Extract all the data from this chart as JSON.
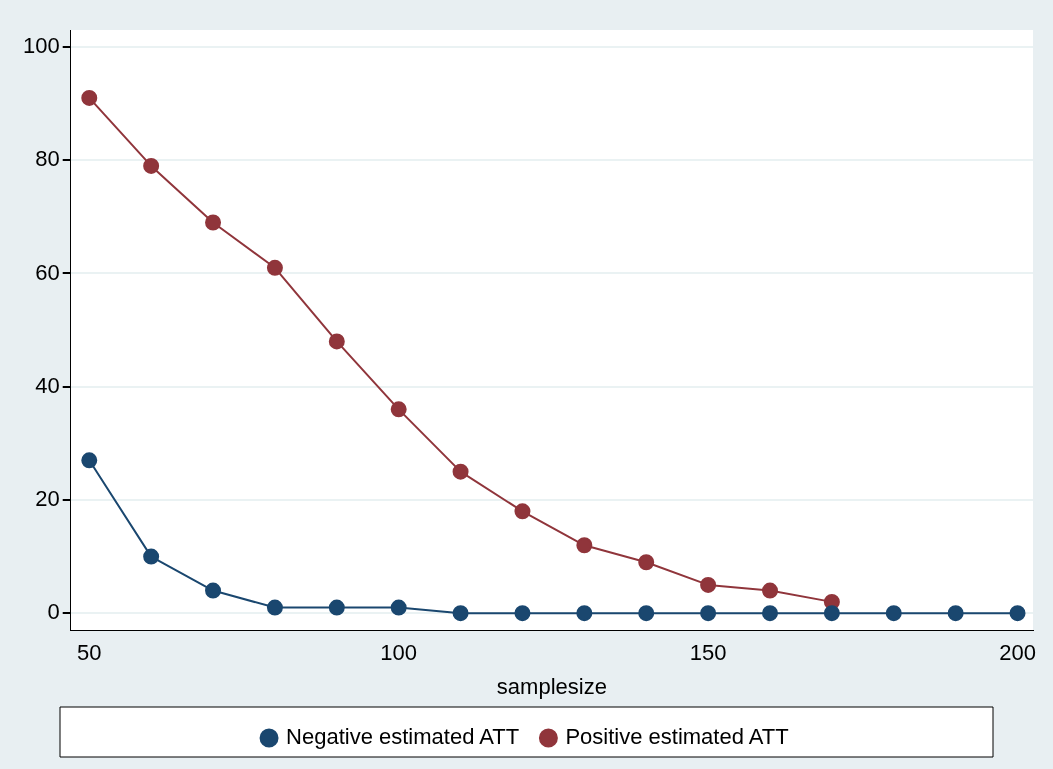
{
  "chart_data": {
    "type": "line",
    "xlabel": "samplesize",
    "x": [
      50,
      60,
      70,
      80,
      90,
      100,
      110,
      120,
      130,
      140,
      150,
      160,
      170,
      180,
      190,
      200
    ],
    "series": [
      {
        "name": "Negative estimated ATT",
        "color": "#1a476f",
        "values": [
          27,
          10,
          4,
          1,
          1,
          1,
          0,
          0,
          0,
          0,
          0,
          0,
          0,
          0,
          0,
          0
        ]
      },
      {
        "name": "Positive estimated ATT",
        "color": "#90353b",
        "values": [
          91,
          79,
          69,
          61,
          48,
          36,
          25,
          18,
          12,
          9,
          5,
          4,
          2,
          null,
          null,
          null
        ]
      }
    ],
    "xlim": [
      47,
      202.5
    ],
    "xticks": [
      50,
      100,
      150,
      200
    ],
    "ylim": [
      -3,
      103
    ],
    "yticks": [
      0,
      20,
      40,
      60,
      80,
      100
    ],
    "grid": "y",
    "legend": "bottom",
    "marker": "circle",
    "line_style": "solid"
  }
}
